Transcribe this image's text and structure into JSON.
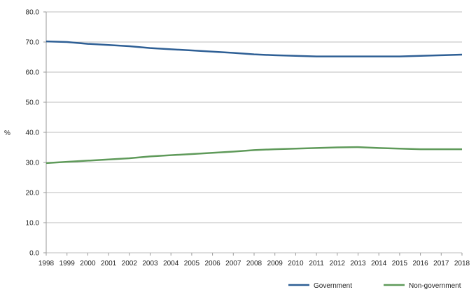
{
  "chart_data": {
    "type": "line",
    "title": "",
    "xlabel": "",
    "ylabel": "%",
    "x": [
      "1998",
      "1999",
      "2000",
      "2001",
      "2002",
      "2003",
      "2004",
      "2005",
      "2006",
      "2007",
      "2008",
      "2009",
      "2010",
      "2011",
      "2012",
      "2013",
      "2014",
      "2015",
      "2016",
      "2017",
      "2018"
    ],
    "yticks": [
      "0.0",
      "10.0",
      "20.0",
      "30.0",
      "40.0",
      "50.0",
      "60.0",
      "70.0",
      "80.0"
    ],
    "ylim": [
      0,
      80
    ],
    "grid": true,
    "legend_position": "bottom",
    "series": [
      {
        "name": "Government",
        "color": "#2e5f95",
        "values": [
          70.2,
          70.0,
          69.4,
          69.0,
          68.6,
          68.0,
          67.6,
          67.2,
          66.8,
          66.4,
          65.9,
          65.6,
          65.4,
          65.2,
          65.2,
          65.2,
          65.2,
          65.2,
          65.4,
          65.6,
          65.8
        ]
      },
      {
        "name": "Non-government",
        "color": "#5f9a5a",
        "values": [
          29.8,
          30.2,
          30.6,
          31.0,
          31.4,
          32.0,
          32.4,
          32.8,
          33.2,
          33.6,
          34.1,
          34.4,
          34.6,
          34.8,
          35.0,
          35.1,
          34.8,
          34.6,
          34.4,
          34.4,
          34.4
        ]
      }
    ]
  }
}
